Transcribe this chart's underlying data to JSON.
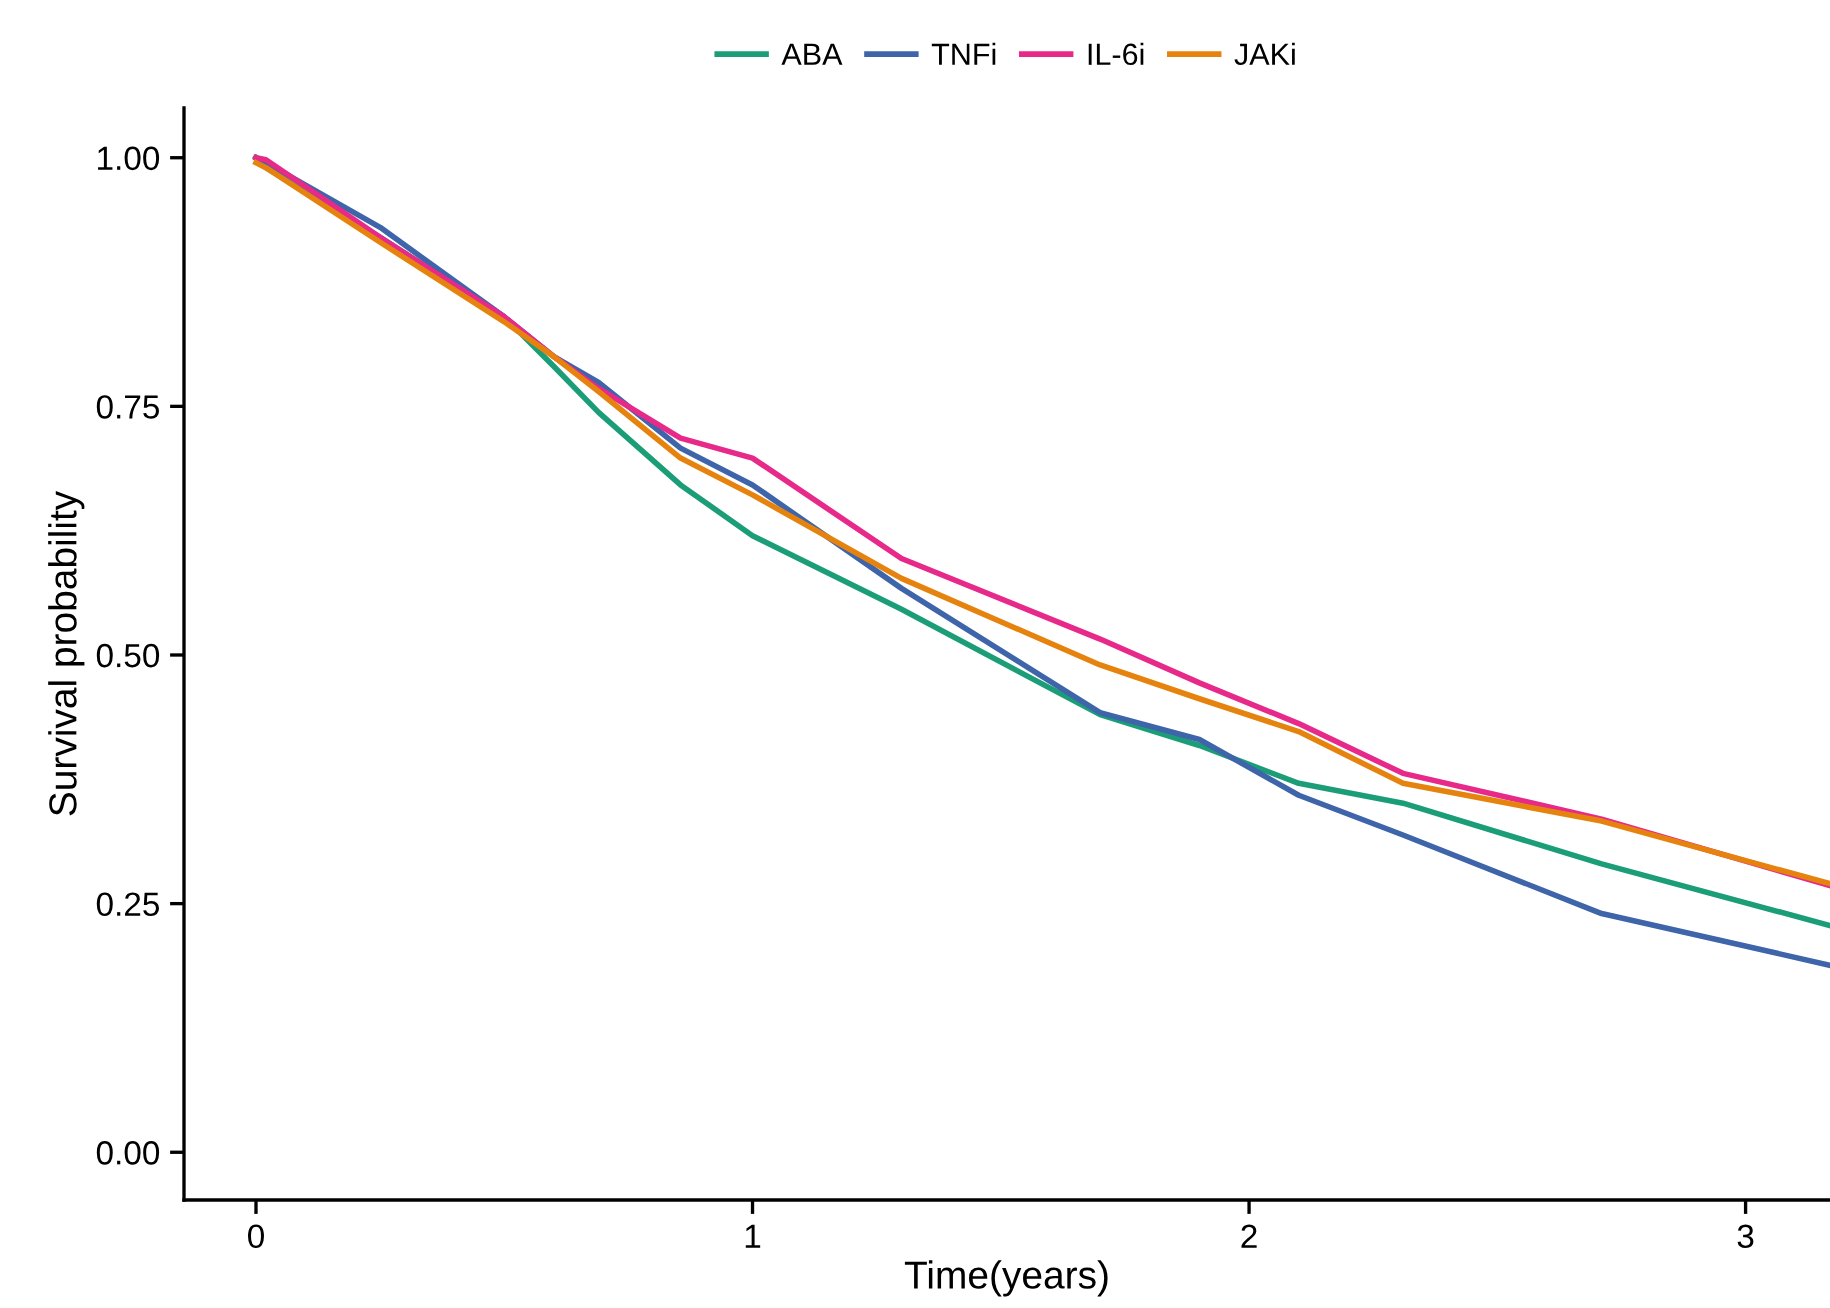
{
  "chart_data": {
    "type": "line",
    "xlabel": "Time(years)",
    "ylabel": "Survival probability",
    "x": [
      0,
      0.02,
      0.25,
      0.5,
      0.6,
      0.69,
      0.855,
      1.0,
      1.3,
      1.7,
      1.9,
      2.1,
      2.31,
      2.71,
      3.17
    ],
    "series": [
      {
        "name": "ABA",
        "color": "#1b9e77",
        "values": [
          1.0,
          0.99,
          0.92,
          0.84,
          0.79,
          0.744,
          0.671,
          0.62,
          0.546,
          0.44,
          0.409,
          0.371,
          0.351,
          0.29,
          0.228
        ]
      },
      {
        "name": "TNFi",
        "color": "#3e64aa",
        "values": [
          1.0,
          0.995,
          0.93,
          0.84,
          0.8,
          0.774,
          0.708,
          0.671,
          0.567,
          0.442,
          0.415,
          0.359,
          0.319,
          0.24,
          0.188
        ]
      },
      {
        "name": "IL-6i",
        "color": "#e7298a",
        "values": [
          1.0,
          0.998,
          0.92,
          0.84,
          0.8,
          0.768,
          0.718,
          0.698,
          0.597,
          0.516,
          0.472,
          0.431,
          0.381,
          0.335,
          0.268
        ]
      },
      {
        "name": "JAKi",
        "color": "#e6830f",
        "values": [
          0.995,
          0.99,
          0.915,
          0.835,
          0.8,
          0.765,
          0.698,
          0.661,
          0.577,
          0.49,
          0.456,
          0.423,
          0.371,
          0.333,
          0.27
        ]
      }
    ],
    "xlim": [
      -0.145,
      3.17
    ],
    "ylim": [
      -0.048,
      1.05
    ],
    "xticks": [
      0,
      1,
      2,
      3
    ],
    "yticks": [
      {
        "value": 0,
        "label": "0.00"
      },
      {
        "value": 0.25,
        "label": "0.25"
      },
      {
        "value": 0.5,
        "label": "0.50"
      },
      {
        "value": 0.75,
        "label": "0.75"
      },
      {
        "value": 1,
        "label": "1.00"
      }
    ],
    "legend": "top",
    "grid": false,
    "marker": "none",
    "line_style": "solid"
  }
}
